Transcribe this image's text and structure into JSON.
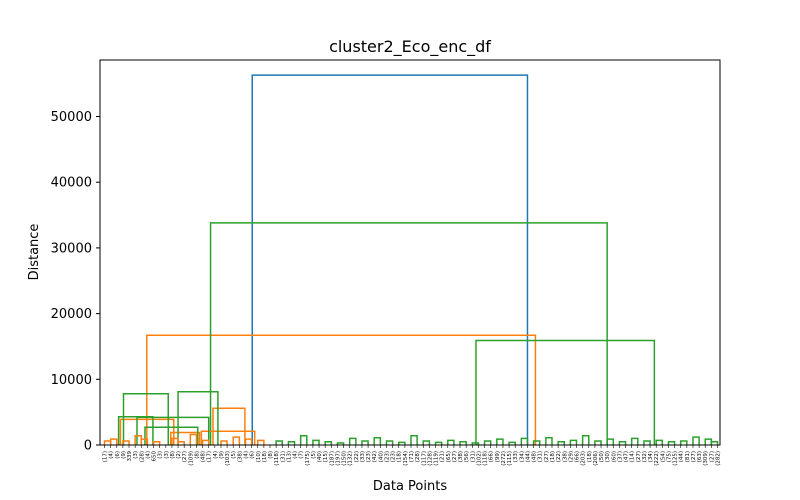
{
  "chart_data": {
    "type": "dendrogram",
    "title": "cluster2_Eco_enc_df",
    "xlabel": "Data Points",
    "ylabel": "Distance",
    "ylim": [
      0,
      58600
    ],
    "yticks": [
      0,
      10000,
      20000,
      30000,
      40000,
      50000
    ],
    "ytick_labels": [
      "0",
      "10000",
      "20000",
      "30000",
      "40000",
      "50000"
    ],
    "grid": false,
    "leaf_labels": [
      "(17)",
      "(4)",
      "(6)",
      "(9)",
      "339",
      "(3)",
      "(28)",
      "(4)",
      "650",
      "(3)",
      "(3)",
      "(8)",
      "(2)",
      "(27)",
      "(109)",
      "(8)",
      "(48)",
      "(17)",
      "(4)",
      "(9)",
      "(103)",
      "(5)",
      "(38)",
      "(4)",
      "(6)",
      "(10)",
      "(18)",
      "(8)",
      "(118)",
      "(31)",
      "(13)",
      "(4)",
      "(7)",
      "(175)",
      "(5)",
      "(40)",
      "(15)",
      "(187)",
      "(197)",
      "(150)",
      "(132)",
      "(22)",
      "(33)",
      "(23)",
      "(42)",
      "(40)",
      "(23)",
      "(23)",
      "(18)",
      "(154)",
      "(71)",
      "(28)",
      "(117)",
      "(128)",
      "(119)",
      "(21)",
      "(65)",
      "(27)",
      "(38)",
      "(56)",
      "(31)",
      "(102)",
      "(118)",
      "(66)",
      "(99)",
      "(272)",
      "(115)",
      "(33)",
      "(34)",
      "(44)",
      "(48)",
      "(31)",
      "(27)",
      "(18)",
      "(22)",
      "(38)",
      "(29)",
      "(66)",
      "(203)",
      "(18)",
      "(206)",
      "(50)",
      "(30)",
      "(60)",
      "(37)",
      "(47)",
      "(14)",
      "(27)",
      "(32)",
      "(34)",
      "(222)",
      "(54)",
      "(75)",
      "(125)",
      "(44)",
      "(81)",
      "(27)",
      "(63)",
      "(309)",
      "(27)",
      "(282)"
    ],
    "links": [
      {
        "x1": 24.1,
        "x2": 69.0,
        "y": 56300,
        "color": "#1f77b4"
      },
      {
        "x1": 6.9,
        "x2": 70.3,
        "y": 16700,
        "color": "#ff7f0e"
      },
      {
        "x1": 17.3,
        "x2": 82.0,
        "y": 33800,
        "color": "#2ca02c"
      },
      {
        "x1": 2.6,
        "x2": 11.3,
        "y": 3900,
        "color": "#ff7f0e"
      },
      {
        "x1": 10.8,
        "x2": 15.5,
        "y": 1900,
        "color": "#ff7f0e"
      },
      {
        "x1": 17.7,
        "x2": 22.9,
        "y": 5600,
        "color": "#ff7f0e"
      },
      {
        "x1": 15.8,
        "x2": 24.5,
        "y": 2100,
        "color": "#ff7f0e"
      },
      {
        "x1": 3.1,
        "x2": 10.4,
        "y": 7800,
        "color": "#2ca02c"
      },
      {
        "x1": 60.6,
        "x2": 89.7,
        "y": 15900,
        "color": "#2ca02c"
      },
      {
        "x1": 2.3,
        "x2": 7.9,
        "y": 4300,
        "color": "#2ca02c"
      },
      {
        "x1": 6.6,
        "x2": 15.2,
        "y": 2700,
        "color": "#2ca02c"
      },
      {
        "x1": 5.3,
        "x2": 17.0,
        "y": 4200,
        "color": "#2ca02c"
      },
      {
        "x1": 12.0,
        "x2": 18.5,
        "y": 8100,
        "color": "#2ca02c"
      }
    ]
  }
}
